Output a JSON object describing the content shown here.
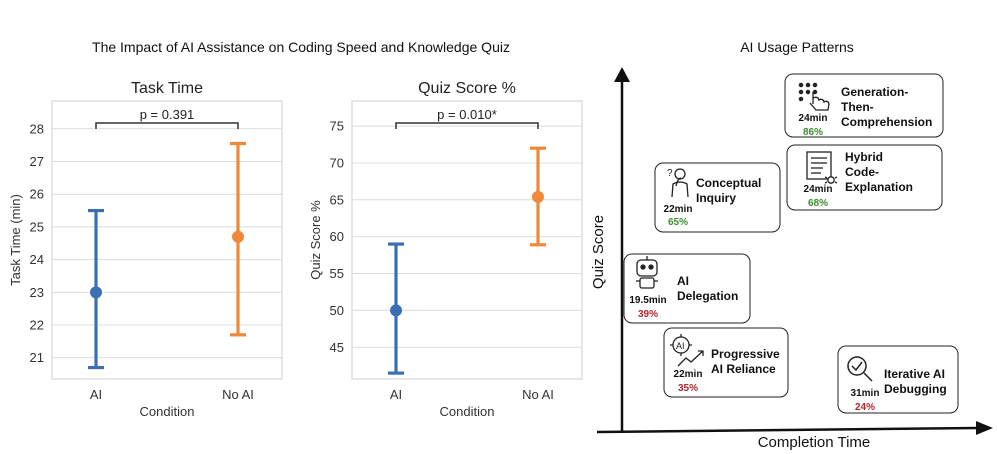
{
  "figure_title": "The Impact of AI Assistance on Coding Speed and Knowledge Quiz",
  "chart_data": [
    {
      "type": "scatter",
      "title": "Task Time",
      "xlabel": "Condition",
      "ylabel": "Task Time (min)",
      "categories": [
        "AI",
        "No AI"
      ],
      "points": [
        {
          "category": "AI",
          "mean": 23.0,
          "lower": 20.7,
          "upper": 25.5,
          "color": "#3a6fb5"
        },
        {
          "category": "No AI",
          "mean": 24.7,
          "lower": 21.7,
          "upper": 27.55,
          "color": "#f0883a"
        }
      ],
      "ylim": [
        20.35,
        28.85
      ],
      "yticks": [
        21,
        22,
        23,
        24,
        25,
        26,
        27,
        28
      ],
      "significance_label": "p = 0.391",
      "grid": true
    },
    {
      "type": "scatter",
      "title": "Quiz Score %",
      "xlabel": "Condition",
      "ylabel": "Quiz Score %",
      "categories": [
        "AI",
        "No AI"
      ],
      "points": [
        {
          "category": "AI",
          "mean": 50.0,
          "lower": 41.5,
          "upper": 59.0,
          "color": "#3a6fb5"
        },
        {
          "category": "No AI",
          "mean": 65.4,
          "lower": 58.9,
          "upper": 72.0,
          "color": "#f0883a"
        }
      ],
      "ylim": [
        40.7,
        78.4
      ],
      "yticks": [
        45,
        50,
        55,
        60,
        65,
        70,
        75
      ],
      "significance_label": "p = 0.010*",
      "grid": true
    }
  ],
  "usage_patterns": {
    "title": "AI Usage Patterns",
    "xlabel": "Completion Time",
    "ylabel": "Quiz Score",
    "high_color": "#3f8a2e",
    "low_color": "#b4252c",
    "items": [
      {
        "name": "Generation-Then-Comprehension",
        "lines": [
          "Generation-",
          "Then-",
          "Comprehension"
        ],
        "time": "24min",
        "score": "86%",
        "level": "high",
        "icon": "grid-pointer-icon"
      },
      {
        "name": "Hybrid Code-Explanation",
        "lines": [
          "Hybrid",
          "Code-",
          "Explanation"
        ],
        "time": "24min",
        "score": "68%",
        "level": "high",
        "icon": "document-bug-icon"
      },
      {
        "name": "Conceptual Inquiry",
        "lines": [
          "Conceptual",
          "Inquiry"
        ],
        "time": "22min",
        "score": "65%",
        "level": "high",
        "icon": "thinking-person-icon"
      },
      {
        "name": "AI Delegation",
        "lines": [
          "AI",
          "Delegation"
        ],
        "time": "19.5min",
        "score": "39%",
        "level": "low",
        "icon": "robot-icon"
      },
      {
        "name": "Progressive AI Reliance",
        "lines": [
          "Progressive",
          "AI Reliance"
        ],
        "time": "22min",
        "score": "35%",
        "level": "low",
        "icon": "ai-gear-trend-icon"
      },
      {
        "name": "Iterative AI Debugging",
        "lines": [
          "Iterative AI",
          "Debugging"
        ],
        "time": "31min",
        "score": "24%",
        "level": "low",
        "icon": "magnifier-check-icon"
      }
    ]
  }
}
